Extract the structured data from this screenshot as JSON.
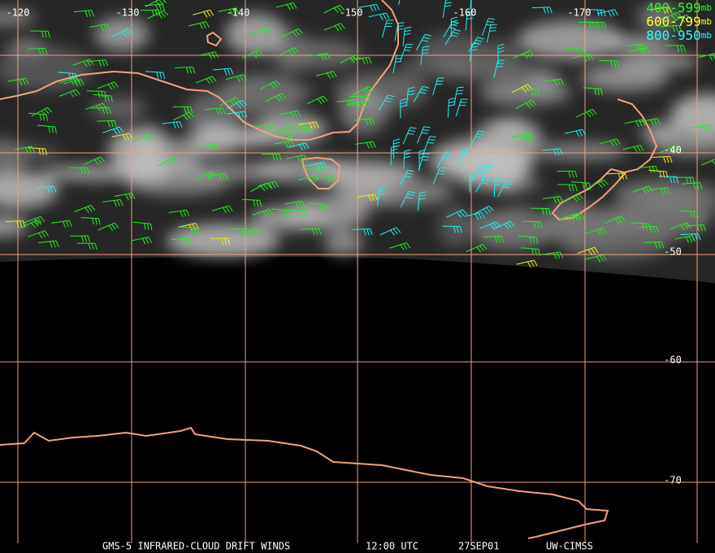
{
  "legend": [
    {
      "range": "400-599",
      "unit": "mb"
    },
    {
      "range": "600-799",
      "unit": "mb"
    },
    {
      "range": "800-950",
      "unit": "mb"
    }
  ],
  "grid": {
    "longitudes": [
      "-120",
      "-130",
      "-140",
      "-150",
      "-160",
      "-170"
    ],
    "latitudes": [
      "-40",
      "-50",
      "-60",
      "-70"
    ]
  },
  "footer": {
    "product": "GMS-5 INFRARED-CLOUD DRIFT WINDS",
    "time": "12:00 UTC",
    "date": "27SEP01",
    "source": "UW-CIMSS"
  }
}
